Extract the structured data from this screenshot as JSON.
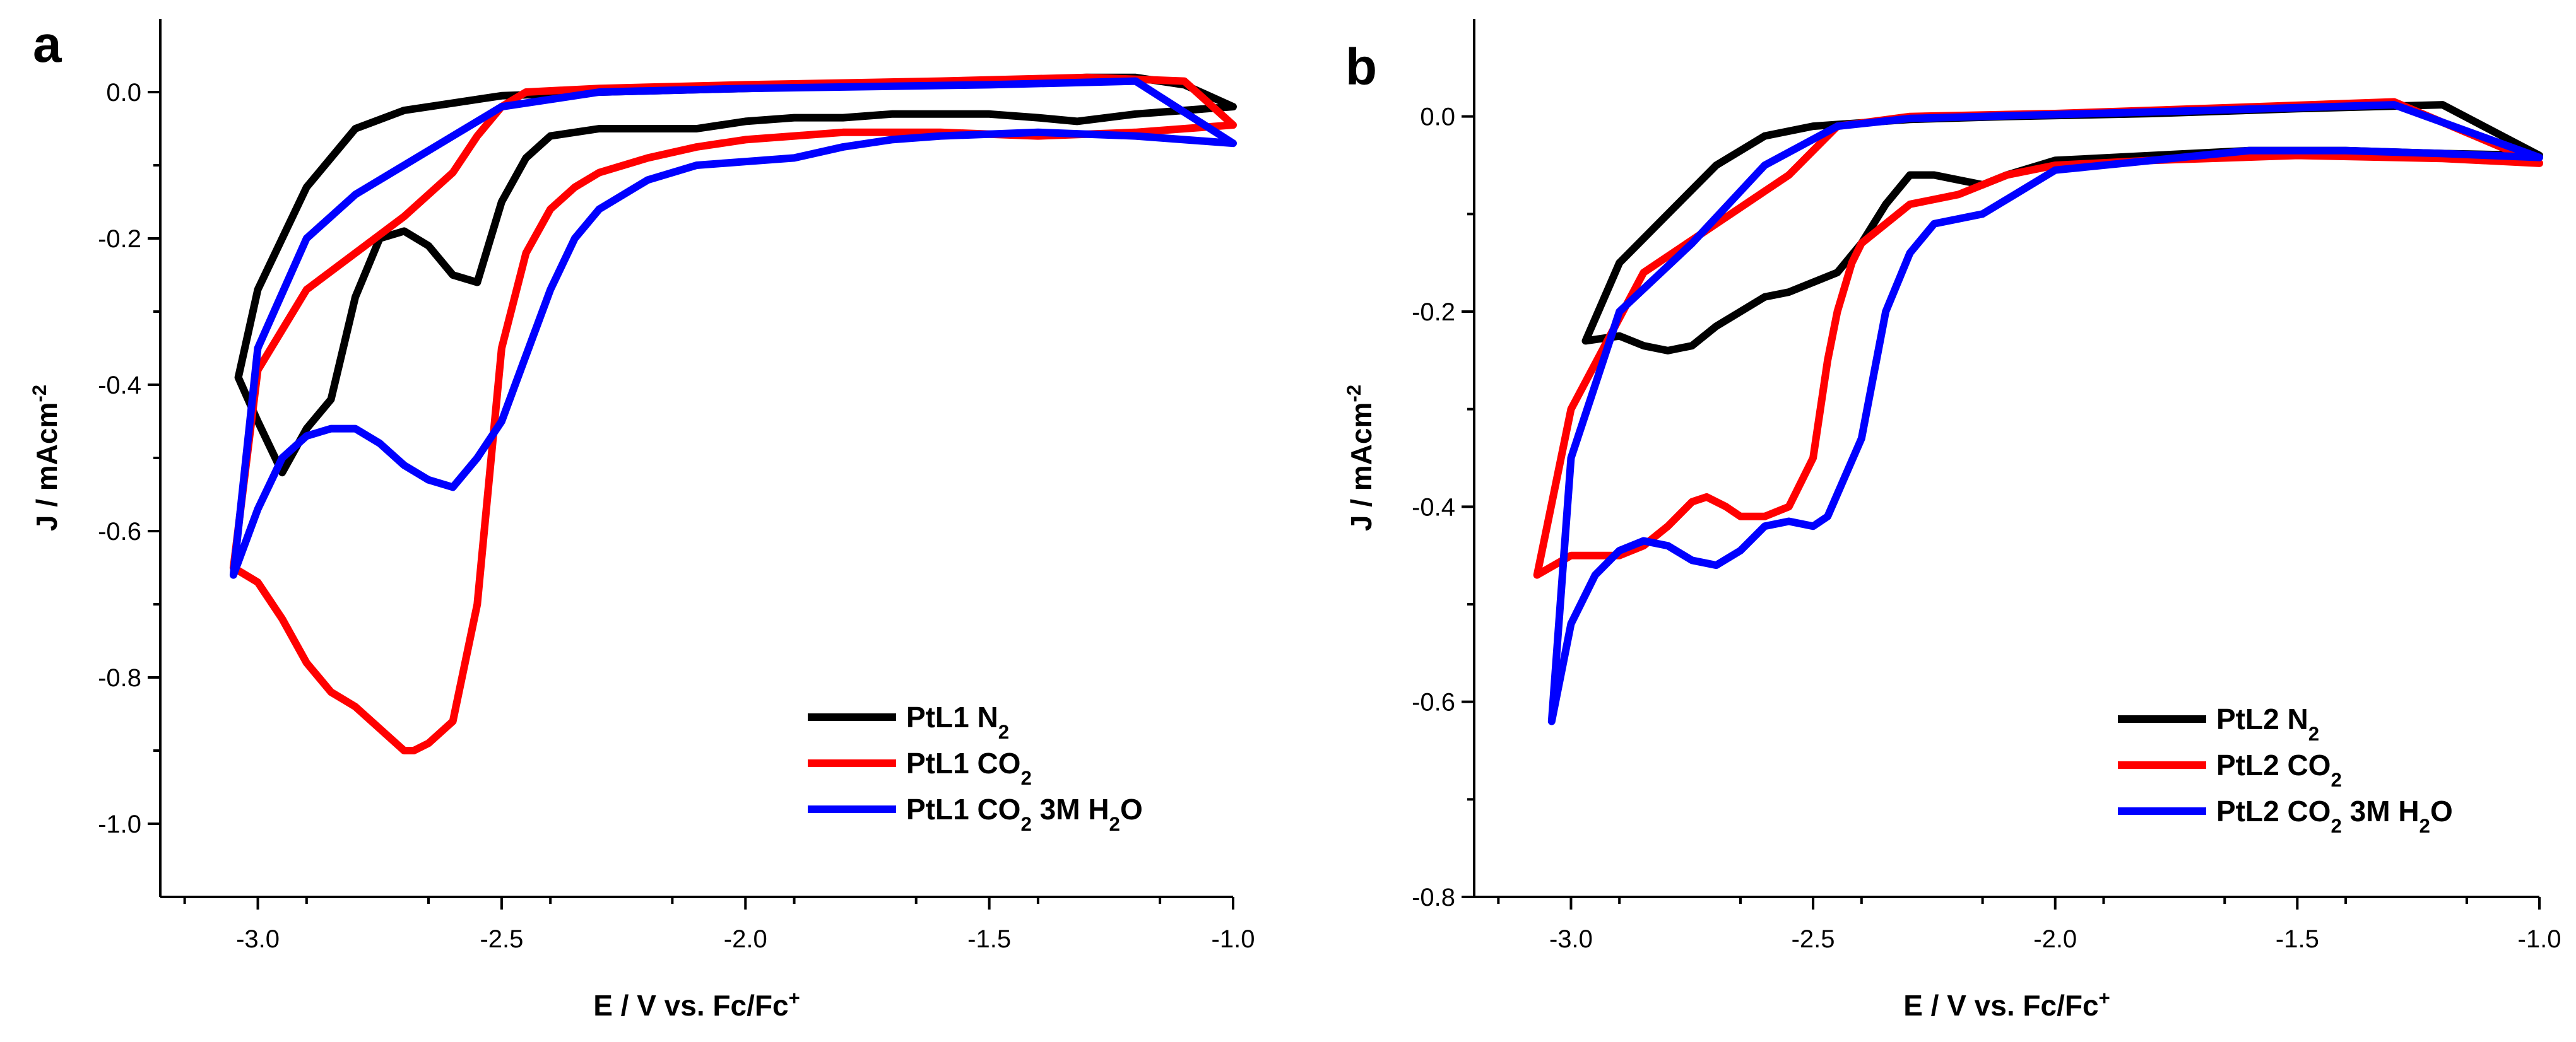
{
  "chart_data": [
    {
      "type": "line",
      "panel": "a",
      "xlabel": "E / V vs. Fc/Fc",
      "xlabel_sup": "+",
      "ylabel": "J / mAcm",
      "ylabel_sup": "-2",
      "xlim": [
        -3.2,
        -1.0
      ],
      "ylim": [
        -1.1,
        0.1
      ],
      "xticks": [
        -3.0,
        -2.5,
        -2.0,
        -1.5,
        -1.0
      ],
      "xtick_labels": [
        "-3.0",
        "-2.5",
        "-2.0",
        "-1.5",
        "-1.0"
      ],
      "yticks": [
        0.0,
        -0.2,
        -0.4,
        -0.6,
        -0.8,
        -1.0
      ],
      "ytick_labels": [
        "0.0",
        "-0.2",
        "-0.4",
        "-0.6",
        "-0.8",
        "-1.0"
      ],
      "legend_position": "bottom-right",
      "series": [
        {
          "name_parts": [
            "PtL1 N",
            "2"
          ],
          "color": "#000000",
          "x": [
            -3.04,
            -3.0,
            -2.95,
            -2.9,
            -2.85,
            -2.8,
            -2.75,
            -2.7,
            -2.65,
            -2.6,
            -2.55,
            -2.5,
            -2.45,
            -2.4,
            -2.3,
            -2.2,
            -2.1,
            -2.0,
            -1.9,
            -1.8,
            -1.7,
            -1.6,
            -1.5,
            -1.4,
            -1.32,
            -1.2,
            -1.1,
            -1.0,
            -1.1,
            -1.2,
            -1.3,
            -1.5,
            -1.7,
            -2.0,
            -2.3,
            -2.5,
            -2.6,
            -2.7,
            -2.8,
            -2.9,
            -3.0,
            -3.04
          ],
          "y": [
            -0.39,
            -0.45,
            -0.52,
            -0.46,
            -0.42,
            -0.28,
            -0.2,
            -0.19,
            -0.21,
            -0.25,
            -0.26,
            -0.15,
            -0.09,
            -0.06,
            -0.05,
            -0.05,
            -0.05,
            -0.04,
            -0.035,
            -0.035,
            -0.03,
            -0.03,
            -0.03,
            -0.035,
            -0.04,
            -0.03,
            -0.025,
            -0.02,
            0.01,
            0.02,
            0.02,
            0.015,
            0.01,
            0.005,
            0.0,
            -0.005,
            -0.015,
            -0.025,
            -0.05,
            -0.13,
            -0.27,
            -0.39
          ]
        },
        {
          "name_parts": [
            "PtL1 CO",
            "2"
          ],
          "color": "#ff0000",
          "x": [
            -3.05,
            -3.0,
            -2.95,
            -2.9,
            -2.85,
            -2.8,
            -2.75,
            -2.7,
            -2.68,
            -2.65,
            -2.6,
            -2.55,
            -2.5,
            -2.45,
            -2.4,
            -2.35,
            -2.3,
            -2.2,
            -2.1,
            -2.0,
            -1.9,
            -1.8,
            -1.6,
            -1.4,
            -1.2,
            -1.0,
            -1.1,
            -1.3,
            -1.6,
            -2.0,
            -2.3,
            -2.45,
            -2.5,
            -2.55,
            -2.6,
            -2.7,
            -2.8,
            -2.9,
            -3.0,
            -3.05
          ],
          "y": [
            -0.65,
            -0.67,
            -0.72,
            -0.78,
            -0.82,
            -0.84,
            -0.87,
            -0.9,
            -0.9,
            -0.89,
            -0.86,
            -0.7,
            -0.35,
            -0.22,
            -0.16,
            -0.13,
            -0.11,
            -0.09,
            -0.075,
            -0.065,
            -0.06,
            -0.055,
            -0.055,
            -0.06,
            -0.055,
            -0.045,
            0.015,
            0.02,
            0.015,
            0.01,
            0.005,
            0.0,
            -0.02,
            -0.06,
            -0.11,
            -0.17,
            -0.22,
            -0.27,
            -0.38,
            -0.65
          ]
        },
        {
          "name_parts": [
            "PtL1 CO",
            "2",
            " 3M H",
            "2",
            "O"
          ],
          "color": "#0000ff",
          "x": [
            -3.05,
            -3.0,
            -2.95,
            -2.9,
            -2.85,
            -2.8,
            -2.75,
            -2.7,
            -2.65,
            -2.6,
            -2.55,
            -2.5,
            -2.45,
            -2.4,
            -2.35,
            -2.3,
            -2.2,
            -2.1,
            -2.0,
            -1.9,
            -1.8,
            -1.7,
            -1.6,
            -1.4,
            -1.2,
            -1.0,
            -1.2,
            -1.5,
            -2.0,
            -2.3,
            -2.5,
            -2.6,
            -2.7,
            -2.8,
            -2.9,
            -3.0,
            -3.05
          ],
          "y": [
            -0.66,
            -0.57,
            -0.5,
            -0.47,
            -0.46,
            -0.46,
            -0.48,
            -0.51,
            -0.53,
            -0.54,
            -0.5,
            -0.45,
            -0.36,
            -0.27,
            -0.2,
            -0.16,
            -0.12,
            -0.1,
            -0.095,
            -0.09,
            -0.075,
            -0.065,
            -0.06,
            -0.055,
            -0.06,
            -0.07,
            0.015,
            0.01,
            0.005,
            0.0,
            -0.02,
            -0.06,
            -0.1,
            -0.14,
            -0.2,
            -0.35,
            -0.66
          ]
        }
      ]
    },
    {
      "type": "line",
      "panel": "b",
      "xlabel": "E / V vs. Fc/Fc",
      "xlabel_sup": "+",
      "ylabel": "J / mAcm",
      "ylabel_sup": "-2",
      "xlim": [
        -3.2,
        -1.0
      ],
      "ylim": [
        -0.8,
        0.1
      ],
      "xticks": [
        -3.0,
        -2.5,
        -2.0,
        -1.5,
        -1.0
      ],
      "xtick_labels": [
        "-3.0",
        "-2.5",
        "-2.0",
        "-1.5",
        "-1.0"
      ],
      "yticks": [
        0.0,
        -0.2,
        -0.4,
        -0.6,
        -0.8
      ],
      "ytick_labels": [
        "0.0",
        "-0.2",
        "-0.4",
        "-0.6",
        "-0.8"
      ],
      "legend_position": "bottom-right",
      "series": [
        {
          "name_parts": [
            "PtL2 N",
            "2"
          ],
          "color": "#000000",
          "x": [
            -2.97,
            -2.9,
            -2.85,
            -2.8,
            -2.75,
            -2.7,
            -2.65,
            -2.6,
            -2.55,
            -2.5,
            -2.45,
            -2.4,
            -2.35,
            -2.3,
            -2.25,
            -2.2,
            -2.15,
            -2.1,
            -2.0,
            -1.8,
            -1.6,
            -1.4,
            -1.2,
            -1.0,
            -1.2,
            -1.5,
            -1.8,
            -2.1,
            -2.3,
            -2.5,
            -2.6,
            -2.7,
            -2.8,
            -2.9,
            -2.97
          ],
          "y": [
            -0.23,
            -0.225,
            -0.235,
            -0.24,
            -0.235,
            -0.215,
            -0.2,
            -0.185,
            -0.18,
            -0.17,
            -0.16,
            -0.13,
            -0.09,
            -0.06,
            -0.06,
            -0.065,
            -0.07,
            -0.06,
            -0.045,
            -0.04,
            -0.035,
            -0.035,
            -0.038,
            -0.04,
            0.012,
            0.008,
            0.003,
            0.0,
            -0.003,
            -0.01,
            -0.02,
            -0.05,
            -0.1,
            -0.15,
            -0.23
          ]
        },
        {
          "name_parts": [
            "PtL2 CO",
            "2"
          ],
          "color": "#ff0000",
          "x": [
            -3.07,
            -3.0,
            -2.9,
            -2.85,
            -2.8,
            -2.75,
            -2.72,
            -2.68,
            -2.65,
            -2.6,
            -2.55,
            -2.5,
            -2.47,
            -2.45,
            -2.42,
            -2.4,
            -2.3,
            -2.2,
            -2.1,
            -2.0,
            -1.8,
            -1.5,
            -1.2,
            -1.0,
            -1.3,
            -1.7,
            -2.0,
            -2.3,
            -2.45,
            -2.55,
            -2.7,
            -2.85,
            -3.0,
            -3.07
          ],
          "y": [
            -0.47,
            -0.45,
            -0.45,
            -0.44,
            -0.42,
            -0.395,
            -0.39,
            -0.4,
            -0.41,
            -0.41,
            -0.4,
            -0.35,
            -0.25,
            -0.2,
            -0.15,
            -0.13,
            -0.09,
            -0.08,
            -0.06,
            -0.05,
            -0.045,
            -0.04,
            -0.043,
            -0.048,
            0.015,
            0.008,
            0.003,
            0.0,
            -0.01,
            -0.06,
            -0.11,
            -0.16,
            -0.3,
            -0.47
          ]
        },
        {
          "name_parts": [
            "PtL2 CO",
            "2",
            " 3M H",
            "2",
            "O"
          ],
          "color": "#0000ff",
          "x": [
            -3.04,
            -3.0,
            -2.95,
            -2.9,
            -2.85,
            -2.8,
            -2.75,
            -2.7,
            -2.65,
            -2.6,
            -2.55,
            -2.5,
            -2.47,
            -2.4,
            -2.35,
            -2.3,
            -2.25,
            -2.15,
            -2.1,
            -2.0,
            -1.8,
            -1.6,
            -1.4,
            -1.2,
            -1.0,
            -1.3,
            -1.7,
            -2.0,
            -2.3,
            -2.45,
            -2.6,
            -2.75,
            -2.9,
            -3.0,
            -3.04
          ],
          "y": [
            -0.62,
            -0.52,
            -0.47,
            -0.445,
            -0.435,
            -0.44,
            -0.455,
            -0.46,
            -0.445,
            -0.42,
            -0.415,
            -0.42,
            -0.41,
            -0.33,
            -0.2,
            -0.14,
            -0.11,
            -0.1,
            -0.085,
            -0.055,
            -0.045,
            -0.035,
            -0.035,
            -0.038,
            -0.042,
            0.012,
            0.006,
            0.002,
            -0.002,
            -0.01,
            -0.05,
            -0.13,
            -0.2,
            -0.35,
            -0.62
          ]
        }
      ]
    }
  ]
}
